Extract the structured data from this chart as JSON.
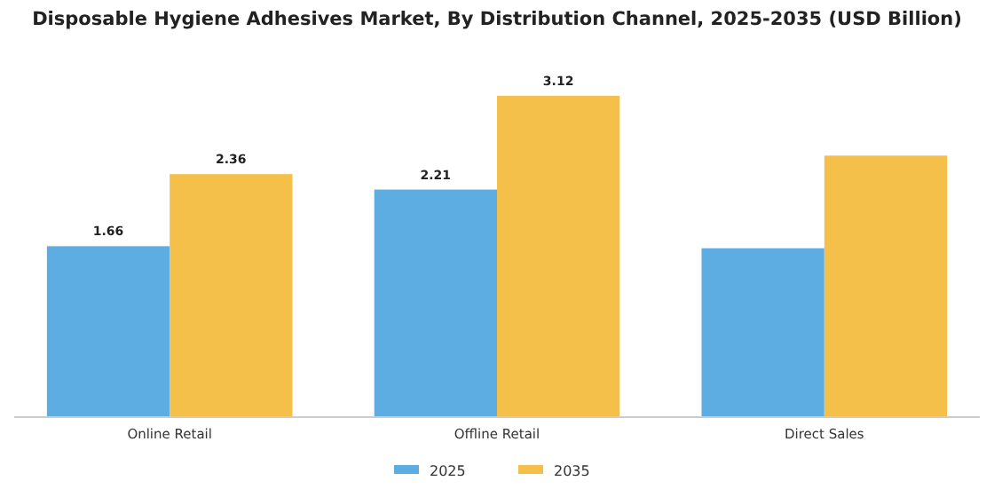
{
  "chart_data": {
    "type": "bar",
    "title": "Disposable Hygiene Adhesives Market, By Distribution Channel, 2025-2035 (USD Billion)",
    "categories": [
      "Online Retail",
      "Offline Retail",
      "Direct Sales"
    ],
    "series": [
      {
        "name": "2025",
        "color": "#5dade2",
        "values": [
          1.66,
          2.21,
          1.64
        ],
        "value_labels": [
          "1.66",
          "2.21",
          null
        ]
      },
      {
        "name": "2035",
        "color": "#f5c04a",
        "values": [
          2.36,
          3.12,
          2.54
        ],
        "value_labels": [
          "2.36",
          "3.12",
          null
        ]
      }
    ],
    "tick_labels": "x",
    "legend": "bottom",
    "grid": false
  }
}
